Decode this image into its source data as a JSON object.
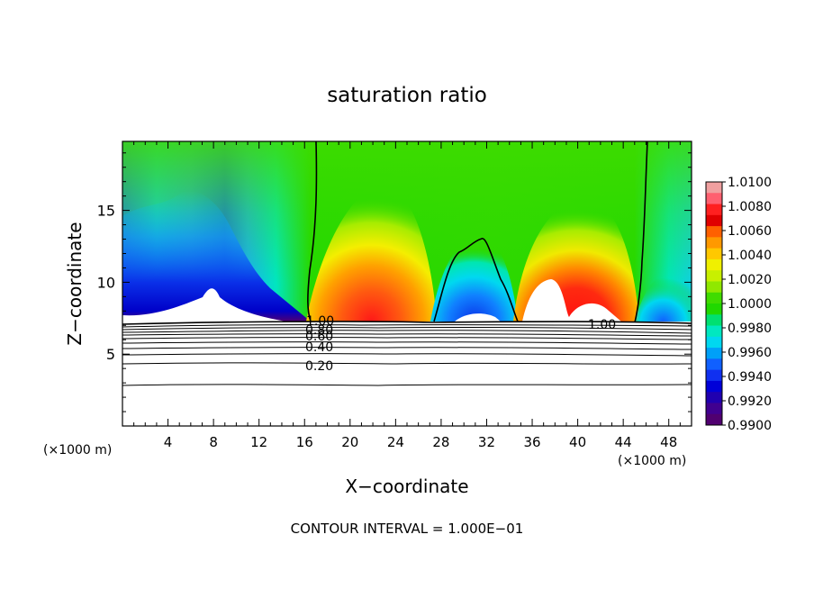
{
  "chart_data": {
    "type": "heatmap",
    "title": "saturation ratio",
    "xlabel": "X−coordinate",
    "ylabel": "Z−coordinate",
    "x_unit_left": "(×1000 m)",
    "x_unit_right": "(×1000 m)",
    "footer": "CONTOUR INTERVAL = 1.000E−01",
    "xlim": [
      0,
      50
    ],
    "ylim": [
      0,
      19.8
    ],
    "x_ticks": [
      "4",
      "8",
      "12",
      "16",
      "20",
      "24",
      "28",
      "32",
      "36",
      "40",
      "44",
      "48"
    ],
    "x_tick_values": [
      4,
      8,
      12,
      16,
      20,
      24,
      28,
      32,
      36,
      40,
      44,
      48
    ],
    "y_ticks": [
      "5",
      "10",
      "15"
    ],
    "y_tick_values": [
      5,
      10,
      15
    ],
    "colorbar": {
      "labels": [
        "1.0100",
        "1.0080",
        "1.0060",
        "1.0040",
        "1.0020",
        "1.0000",
        "0.9980",
        "0.9960",
        "0.9940",
        "0.9920",
        "0.9900"
      ],
      "min": 0.99,
      "max": 1.01,
      "colors": [
        "#f0a0a0",
        "#ff6070",
        "#ff2020",
        "#e00000",
        "#ff6000",
        "#ff9900",
        "#ffc800",
        "#f0f000",
        "#c8f000",
        "#90e800",
        "#40dc00",
        "#20d800",
        "#00e070",
        "#00e8c0",
        "#00d8f0",
        "#00a0f8",
        "#1060ff",
        "#1030f0",
        "#0000d8",
        "#2000b0",
        "#400090",
        "#500070"
      ]
    },
    "contour_labels": [
      {
        "text": "1.00",
        "x": 17.2,
        "z": 7.2
      },
      {
        "text": "0.80",
        "x": 17.1,
        "z": 6.7
      },
      {
        "text": "0.60",
        "x": 17.1,
        "z": 6.2
      },
      {
        "text": "0.40",
        "x": 17.1,
        "z": 5.5
      },
      {
        "text": "0.20",
        "x": 17.1,
        "z": 3.9
      },
      {
        "text": "1.00",
        "x": 42.5,
        "z": 7.0
      }
    ]
  }
}
